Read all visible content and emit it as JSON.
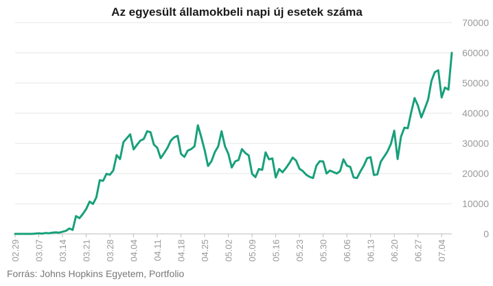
{
  "chart_data": {
    "type": "line",
    "title": "Az egyesült államokbeli napi új esetek száma",
    "source": "Forrás: Johns Hopkins Egyetem, Portfolio",
    "x_tick_labels": [
      "02.29",
      "03.07",
      "03.14",
      "03.21",
      "03.28",
      "04.04",
      "04.11",
      "04.18",
      "04.25",
      "05.02",
      "05.09",
      "05.16",
      "05.23",
      "05.30",
      "06.06",
      "06.13",
      "06.20",
      "06.27",
      "07.04"
    ],
    "y_tick_labels": [
      "0",
      "10000",
      "20000",
      "30000",
      "40000",
      "50000",
      "60000",
      "70000"
    ],
    "ylim": [
      0,
      70000
    ],
    "grid": true,
    "line_color": "#17a07a",
    "series": [
      {
        "x": [
          "02.29",
          "03.01",
          "03.02",
          "03.03",
          "03.04",
          "03.05",
          "03.06",
          "03.07",
          "03.08",
          "03.09",
          "03.10",
          "03.11",
          "03.12",
          "03.13",
          "03.14",
          "03.15",
          "03.16",
          "03.17",
          "03.18",
          "03.19",
          "03.20",
          "03.21",
          "03.22",
          "03.23",
          "03.24",
          "03.25",
          "03.26",
          "03.27",
          "03.28",
          "03.29",
          "03.30",
          "03.31",
          "04.01",
          "04.02",
          "04.03",
          "04.04",
          "04.05",
          "04.06",
          "04.07",
          "04.08",
          "04.09",
          "04.10",
          "04.11",
          "04.12",
          "04.13",
          "04.14",
          "04.15",
          "04.16",
          "04.17",
          "04.18",
          "04.19",
          "04.20",
          "04.21",
          "04.22",
          "04.23",
          "04.24",
          "04.25",
          "04.26",
          "04.27",
          "04.28",
          "04.29",
          "04.30",
          "05.01",
          "05.02",
          "05.03",
          "05.04",
          "05.05",
          "05.06",
          "05.07",
          "05.08",
          "05.09",
          "05.10",
          "05.11",
          "05.12",
          "05.13",
          "05.14",
          "05.15",
          "05.16",
          "05.17",
          "05.18",
          "05.19",
          "05.20",
          "05.21",
          "05.22",
          "05.23",
          "05.24",
          "05.25",
          "05.26",
          "05.27",
          "05.28",
          "05.29",
          "05.30",
          "05.31",
          "06.01",
          "06.02",
          "06.03",
          "06.04",
          "06.05",
          "06.06",
          "06.07",
          "06.08",
          "06.09",
          "06.10",
          "06.11",
          "06.12",
          "06.13",
          "06.14",
          "06.15",
          "06.16",
          "06.17",
          "06.18",
          "06.19",
          "06.20",
          "06.21",
          "06.22",
          "06.23",
          "06.24",
          "06.25",
          "06.26",
          "06.27",
          "06.28",
          "06.29",
          "06.30",
          "07.01",
          "07.02",
          "07.03",
          "07.04",
          "07.05",
          "07.06",
          "07.07"
        ],
        "values": [
          0,
          0,
          0,
          0,
          0,
          0,
          100,
          200,
          100,
          300,
          200,
          400,
          500,
          400,
          700,
          1000,
          1800,
          1300,
          5900,
          5200,
          6600,
          8200,
          10700,
          9900,
          12100,
          17800,
          17600,
          19900,
          19600,
          21000,
          26100,
          24800,
          30400,
          31700,
          33000,
          28000,
          29500,
          30900,
          31400,
          34000,
          33700,
          29600,
          28500,
          25100,
          26700,
          28500,
          30900,
          32000,
          32500,
          26500,
          25500,
          27600,
          28100,
          29000,
          36000,
          32000,
          27700,
          22500,
          24100,
          27100,
          29000,
          34000,
          29000,
          26500,
          22000,
          24000,
          24500,
          28100,
          26800,
          26000,
          19900,
          18800,
          21500,
          21200,
          27000,
          24700,
          25000,
          18700,
          21500,
          20400,
          21800,
          23400,
          25300,
          24300,
          21600,
          20800,
          19600,
          18900,
          18500,
          22600,
          24100,
          24000,
          20000,
          21000,
          20500,
          20000,
          20800,
          24700,
          22600,
          22200,
          18700,
          18500,
          20700,
          22600,
          25100,
          25400,
          19500,
          19700,
          23900,
          25600,
          27300,
          29800,
          34200,
          24800,
          32200,
          35200,
          35000,
          40200,
          45000,
          42500,
          38600,
          41500,
          44500,
          50700,
          53600,
          54200,
          45200,
          48500,
          47800,
          60000
        ]
      }
    ]
  }
}
